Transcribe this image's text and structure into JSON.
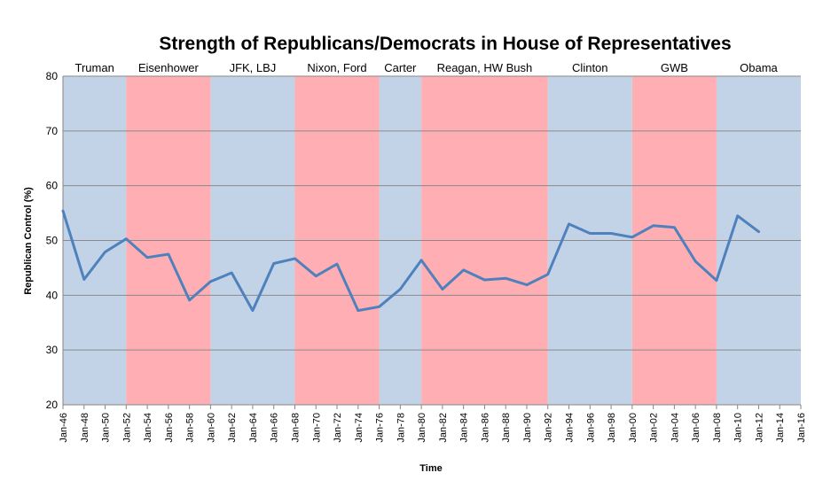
{
  "chart_data": {
    "type": "line",
    "title": "Strength of Republicans/Democrats in House of Representatives",
    "xlabel": "Time",
    "ylabel": "Republican Control (%)",
    "ylim": [
      20,
      80
    ],
    "yticks": [
      20,
      30,
      40,
      50,
      60,
      70,
      80
    ],
    "grid": true,
    "legend": "none",
    "series_color": "#4F81BD",
    "x_ticks": [
      "Jan-46",
      "Jan-48",
      "Jan-50",
      "Jan-52",
      "Jan-54",
      "Jan-56",
      "Jan-58",
      "Jan-60",
      "Jan-62",
      "Jan-64",
      "Jan-66",
      "Jan-68",
      "Jan-70",
      "Jan-72",
      "Jan-74",
      "Jan-76",
      "Jan-78",
      "Jan-80",
      "Jan-82",
      "Jan-84",
      "Jan-86",
      "Jan-88",
      "Jan-90",
      "Jan-92",
      "Jan-94",
      "Jan-96",
      "Jan-98",
      "Jan-00",
      "Jan-02",
      "Jan-04",
      "Jan-06",
      "Jan-08",
      "Jan-10",
      "Jan-12",
      "Jan-14",
      "Jan-16"
    ],
    "eras": [
      {
        "label": "Truman",
        "start": "Jan-46",
        "end": "Jan-52",
        "party": "D",
        "color": "#C2D3E7"
      },
      {
        "label": "Eisenhower",
        "start": "Jan-52",
        "end": "Jan-60",
        "party": "R",
        "color": "#FFAEB3"
      },
      {
        "label": "JFK, LBJ",
        "start": "Jan-60",
        "end": "Jan-68",
        "party": "D",
        "color": "#C2D3E7"
      },
      {
        "label": "Nixon, Ford",
        "start": "Jan-68",
        "end": "Jan-76",
        "party": "R",
        "color": "#FFAEB3"
      },
      {
        "label": "Carter",
        "start": "Jan-76",
        "end": "Jan-80",
        "party": "D",
        "color": "#C2D3E7"
      },
      {
        "label": "Reagan, HW Bush",
        "start": "Jan-80",
        "end": "Jan-92",
        "party": "R",
        "color": "#FFAEB3"
      },
      {
        "label": "Clinton",
        "start": "Jan-92",
        "end": "Jan-00",
        "party": "D",
        "color": "#C2D3E7"
      },
      {
        "label": "GWB",
        "start": "Jan-00",
        "end": "Jan-08",
        "party": "R",
        "color": "#FFAEB3"
      },
      {
        "label": "Obama",
        "start": "Jan-08",
        "end": "Jan-16",
        "party": "D",
        "color": "#C2D3E7"
      }
    ],
    "series": [
      {
        "x": [
          "Jan-46",
          "Jan-48",
          "Jan-50",
          "Jan-52",
          "Jan-54",
          "Jan-56",
          "Jan-58",
          "Jan-60",
          "Jan-62",
          "Jan-64",
          "Jan-66",
          "Jan-68",
          "Jan-70",
          "Jan-72",
          "Jan-74",
          "Jan-76",
          "Jan-78",
          "Jan-80",
          "Jan-82",
          "Jan-84",
          "Jan-86",
          "Jan-88",
          "Jan-90",
          "Jan-92",
          "Jan-94",
          "Jan-96",
          "Jan-98",
          "Jan-00",
          "Jan-02",
          "Jan-04",
          "Jan-06",
          "Jan-08",
          "Jan-10",
          "Jan-12"
        ],
        "values": [
          55.4,
          42.9,
          47.9,
          50.3,
          46.9,
          47.5,
          39.1,
          42.5,
          44.1,
          37.2,
          45.8,
          46.7,
          43.5,
          45.7,
          37.2,
          37.9,
          41.1,
          46.4,
          41.1,
          44.6,
          42.8,
          43.1,
          41.9,
          43.8,
          53.0,
          51.3,
          51.3,
          50.6,
          52.7,
          52.4,
          46.2,
          42.7,
          54.5,
          51.6
        ]
      }
    ]
  }
}
